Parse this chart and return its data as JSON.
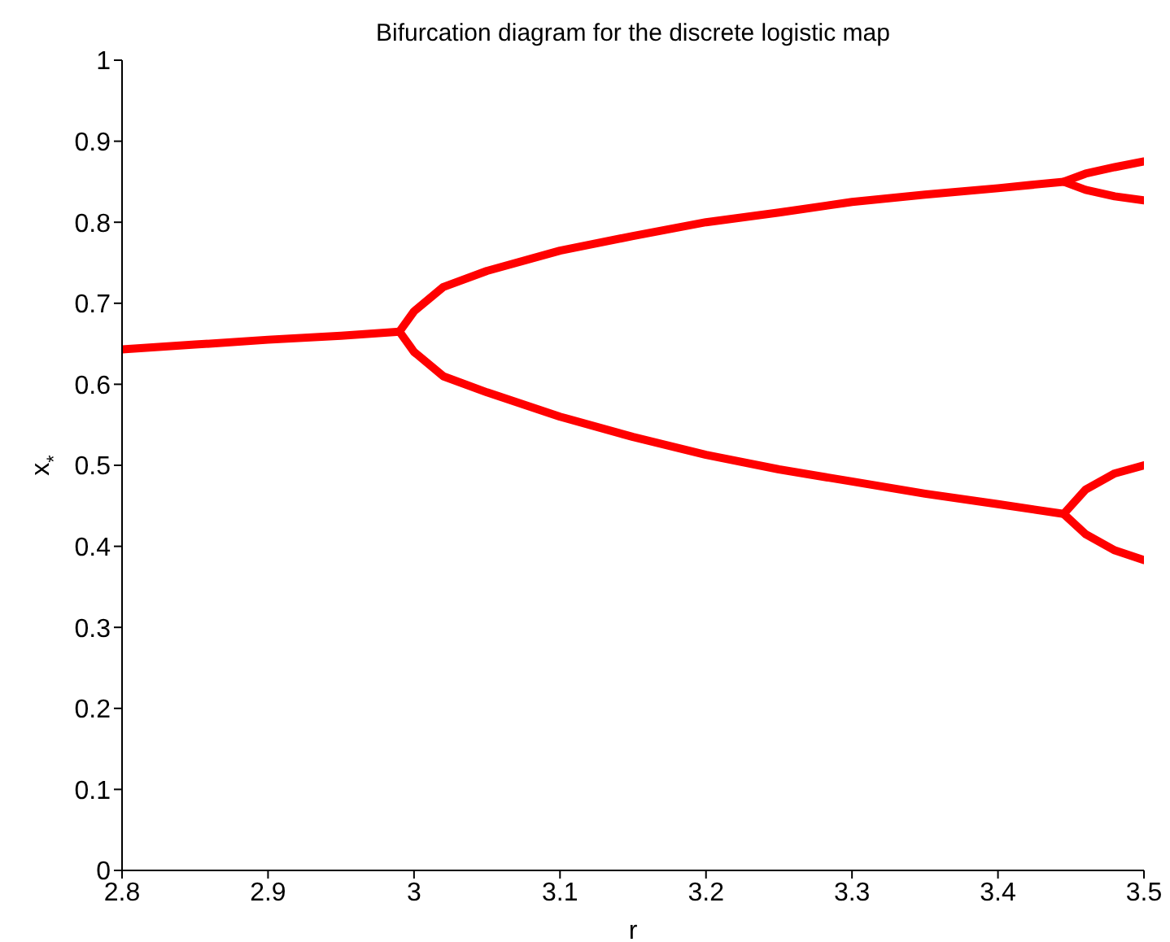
{
  "chart_data": {
    "type": "line",
    "title": "Bifurcation diagram for the discrete logistic map",
    "xlabel": "r",
    "ylabel": "x$_{*}$",
    "xlim": [
      2.8,
      3.5
    ],
    "xticks": [
      2.8,
      2.9,
      3,
      3.1,
      3.2,
      3.3,
      3.4,
      3.5
    ],
    "ylim": [
      0,
      1
    ],
    "yticks": [
      0,
      0.1,
      0.2,
      0.3,
      0.4,
      0.5,
      0.6,
      0.7,
      0.8,
      0.9,
      1
    ],
    "marker": "none",
    "line_style": "solid",
    "series": [
      {
        "color": "#ff0000",
        "x": [
          2.8,
          2.85,
          2.9,
          2.95,
          2.99
        ],
        "values": [
          0.643,
          0.649,
          0.655,
          0.66,
          0.665
        ]
      },
      {
        "color": "#ff0000",
        "x": [
          2.99,
          3.0,
          3.02,
          3.05,
          3.1,
          3.15,
          3.2,
          3.25,
          3.3,
          3.35,
          3.4,
          3.445,
          3.46,
          3.48,
          3.5
        ],
        "values": [
          0.665,
          0.69,
          0.72,
          0.74,
          0.765,
          0.783,
          0.8,
          0.812,
          0.825,
          0.834,
          0.842,
          0.85,
          0.86,
          0.868,
          0.875
        ]
      },
      {
        "color": "#ff0000",
        "x": [
          2.99,
          3.0,
          3.02,
          3.05,
          3.1,
          3.15,
          3.2,
          3.25,
          3.3,
          3.35,
          3.4,
          3.445,
          3.46,
          3.48,
          3.5
        ],
        "values": [
          0.665,
          0.64,
          0.61,
          0.59,
          0.56,
          0.535,
          0.513,
          0.495,
          0.48,
          0.465,
          0.452,
          0.44,
          0.47,
          0.49,
          0.5
        ]
      },
      {
        "color": "#ff0000",
        "x": [
          3.445,
          3.46,
          3.48,
          3.5
        ],
        "values": [
          0.85,
          0.84,
          0.832,
          0.827
        ]
      },
      {
        "color": "#ff0000",
        "x": [
          3.445,
          3.46,
          3.48,
          3.5
        ],
        "values": [
          0.44,
          0.415,
          0.395,
          0.383
        ]
      }
    ]
  }
}
